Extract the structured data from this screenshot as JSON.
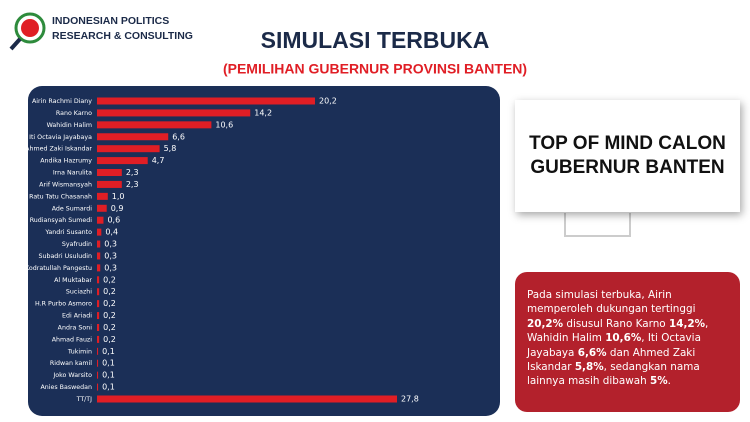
{
  "header": {
    "org_line1": "INDONESIAN POLITICS",
    "org_line2": "RESEARCH & CONSULTING"
  },
  "chart_data": {
    "type": "hbar",
    "title": "SIMULASI TERBUKA",
    "subtitle": "(PEMILIHAN GUBERNUR PROVINSI BANTEN)",
    "color": "#e01e25",
    "categories": [
      "Airin Rachmi Diany",
      "Rano Karno",
      "Wahidin Halim",
      "Iti Octavia Jayabaya",
      "Ahmed Zaki Iskandar",
      "Andika Hazrumy",
      "Irna Narulita",
      "Arif Wismansyah",
      "Ratu Tatu Chasanah",
      "Ade Sumardi",
      "Gembong Rudiansyah Sumedi",
      "Yandri Susanto",
      "Syafrudin",
      "Subadri Usuludin",
      "Ade Kodratullah Pangestu",
      "Al Muktabar",
      "Suciazhi",
      "H.R Purbo Asmoro",
      "Edi Ariadi",
      "Andra Soni",
      "Ahmad Fauzi",
      "Tukimin",
      "Ridwan kamil",
      "Joko Warsito",
      "Anies Baswedan",
      "TT/TJ"
    ],
    "values": [
      20.2,
      14.2,
      10.6,
      6.6,
      5.8,
      4.7,
      2.3,
      2.3,
      1.0,
      0.9,
      0.6,
      0.4,
      0.3,
      0.3,
      0.3,
      0.2,
      0.2,
      0.2,
      0.2,
      0.2,
      0.2,
      0.1,
      0.1,
      0.1,
      0.1,
      27.8
    ],
    "value_labels": [
      "20,2",
      "14,2",
      "10,6",
      "6,6",
      "5,8",
      "4,7",
      "2,3",
      "2,3",
      "1,0",
      "0,9",
      "0,6",
      "0,4",
      "0,3",
      "0,3",
      "0,3",
      "0,2",
      "0,2",
      "0,2",
      "0,2",
      "0,2",
      "0,2",
      "0,1",
      "0,1",
      "0,1",
      "0,1",
      "27,8"
    ]
  },
  "callout": {
    "heading": "TOP OF MIND CALON GUBERNUR BANTEN"
  },
  "summary": {
    "segments": [
      {
        "text": "Pada simulasi terbuka, Airin memperoleh dukungan tertinggi ",
        "bold": false
      },
      {
        "text": "20,2%",
        "bold": true
      },
      {
        "text": " disusul Rano Karno ",
        "bold": false
      },
      {
        "text": "14,2%",
        "bold": true
      },
      {
        "text": ", Wahidin Halim ",
        "bold": false
      },
      {
        "text": "10,6%",
        "bold": true
      },
      {
        "text": ", Iti Octavia Jayabaya ",
        "bold": false
      },
      {
        "text": "6,6%",
        "bold": true
      },
      {
        "text": " dan Ahmed Zaki Iskandar ",
        "bold": false
      },
      {
        "text": "5,8%",
        "bold": true
      },
      {
        "text": ", sedangkan nama lainnya masih dibawah ",
        "bold": false
      },
      {
        "text": "5%",
        "bold": true
      },
      {
        "text": ".",
        "bold": false
      }
    ]
  }
}
